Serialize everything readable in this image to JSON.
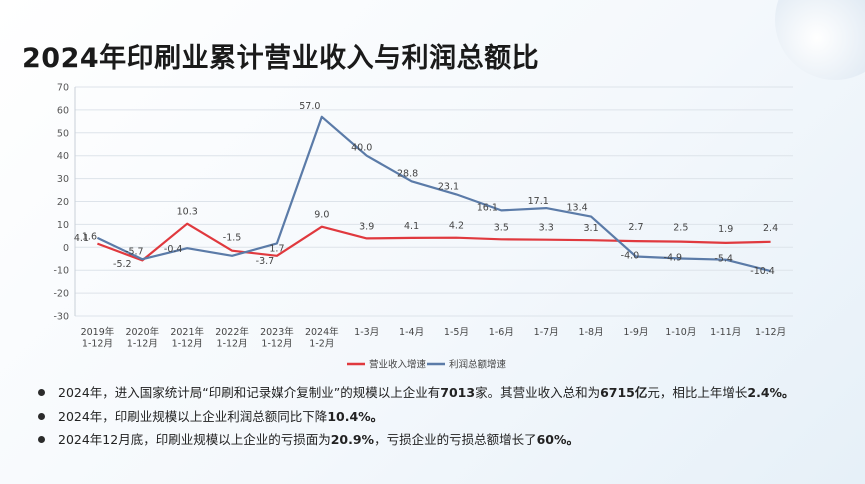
{
  "page": {
    "title": "2024年印刷业累计营业收入与利润总额比"
  },
  "chart_data": {
    "type": "line",
    "title": "",
    "xlabel": "",
    "ylabel": "",
    "ylim": [
      -30,
      70
    ],
    "yticks": [
      -30,
      -20,
      -10,
      0,
      10,
      20,
      30,
      40,
      50,
      60,
      70
    ],
    "grid": true,
    "legend_position": "bottom",
    "categories": [
      [
        "2019年",
        "1-12月"
      ],
      [
        "2020年",
        "1-12月"
      ],
      [
        "2021年",
        "1-12月"
      ],
      [
        "2022年",
        "1-12月"
      ],
      [
        "2023年",
        "1-12月"
      ],
      [
        "2024年",
        "1-2月"
      ],
      [
        "1-3月"
      ],
      [
        "1-4月"
      ],
      [
        "1-5月"
      ],
      [
        "1-6月"
      ],
      [
        "1-7月"
      ],
      [
        "1-8月"
      ],
      [
        "1-9月"
      ],
      [
        "1-10月"
      ],
      [
        "1-11月"
      ],
      [
        "1-12月"
      ]
    ],
    "series": [
      {
        "name": "营业收入增速",
        "color": "#e0393e",
        "values": [
          1.6,
          -5.7,
          10.3,
          -1.5,
          -3.7,
          9.0,
          3.9,
          4.1,
          4.2,
          3.5,
          3.3,
          3.1,
          2.7,
          2.5,
          1.9,
          2.4
        ],
        "labels": [
          "1.6",
          "-5.7",
          "10.3",
          "-1.5",
          "-3.7",
          "9.0",
          "3.9",
          "4.1",
          "4.2",
          "3.5",
          "3.3",
          "3.1",
          "2.7",
          "2.5",
          "1.9",
          "2.4"
        ]
      },
      {
        "name": "利润总额增速",
        "color": "#5b7ba8",
        "values": [
          4.1,
          -5.2,
          -0.4,
          -3.7,
          1.7,
          57.0,
          40.0,
          28.8,
          23.1,
          16.1,
          17.1,
          13.4,
          -4.0,
          -4.9,
          -5.4,
          -10.4
        ],
        "labels": [
          "4.1",
          "-5.2",
          "-0.4",
          "",
          "1.7",
          "57.0",
          "40.0",
          "28.8",
          "23.1",
          "16.1",
          "17.1",
          "13.4",
          "-4.0",
          "-4.9",
          "-5.4",
          "-10.4"
        ]
      }
    ]
  },
  "notes": [
    [
      {
        "t": "2024年，进入国家统计局“印刷和记录媒介复制业”的规模以上企业有",
        "b": false
      },
      {
        "t": "7013",
        "b": true
      },
      {
        "t": "家。其营业收入总和为",
        "b": false
      },
      {
        "t": "6715亿",
        "b": true
      },
      {
        "t": "元，相比上年增长",
        "b": false
      },
      {
        "t": "2.4%。",
        "b": true
      }
    ],
    [
      {
        "t": "2024年，印刷业规模以上企业利润总额同比下降",
        "b": false
      },
      {
        "t": "10.4%。",
        "b": true
      }
    ],
    [
      {
        "t": "2024年12月底，印刷业规模以上企业的亏损面为",
        "b": false
      },
      {
        "t": "20.9%",
        "b": true
      },
      {
        "t": "，亏损企业的亏损总额增长了",
        "b": false
      },
      {
        "t": "60%。",
        "b": true
      }
    ]
  ]
}
